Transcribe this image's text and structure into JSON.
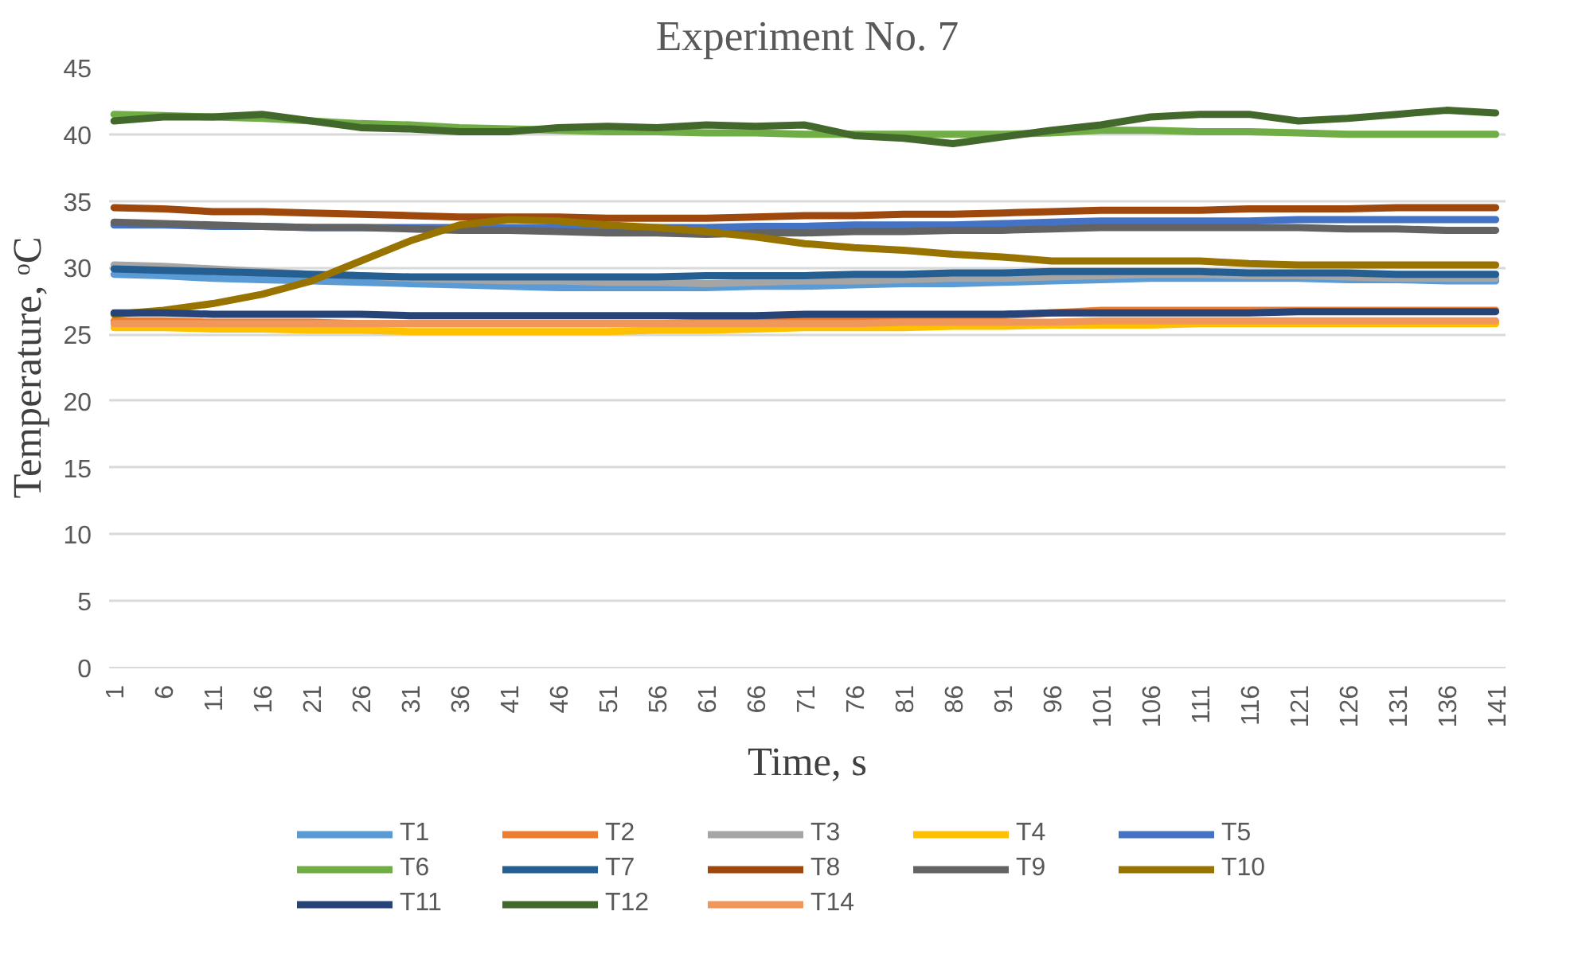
{
  "chart_data": {
    "type": "line",
    "title": "Experiment No. 7",
    "xlabel": "Time, s",
    "ylabel": "Temperature, ᵒC",
    "x": [
      1,
      6,
      11,
      16,
      21,
      26,
      31,
      36,
      41,
      46,
      51,
      56,
      61,
      66,
      71,
      76,
      81,
      86,
      91,
      96,
      101,
      106,
      111,
      116,
      121,
      126,
      131,
      136,
      141
    ],
    "xlim": [
      0.5,
      142
    ],
    "xticks": [
      1,
      6,
      11,
      16,
      21,
      26,
      31,
      36,
      41,
      46,
      51,
      56,
      61,
      66,
      71,
      76,
      81,
      86,
      91,
      96,
      101,
      106,
      111,
      116,
      121,
      126,
      131,
      136,
      141
    ],
    "ylim": [
      0,
      45
    ],
    "yticks": [
      0,
      5,
      10,
      15,
      20,
      25,
      30,
      35,
      40,
      45
    ],
    "grid": "y",
    "legend": "bottom",
    "marker": "none",
    "line_style": "solid",
    "series": [
      {
        "name": "T1",
        "color": "#5b9bd5",
        "values": [
          29.5,
          29.4,
          29.2,
          29.1,
          29,
          28.9,
          28.8,
          28.7,
          28.6,
          28.5,
          28.5,
          28.5,
          28.5,
          28.6,
          28.6,
          28.7,
          28.8,
          28.8,
          28.9,
          29,
          29.1,
          29.2,
          29.2,
          29.2,
          29.2,
          29.1,
          29.1,
          29,
          29
        ]
      },
      {
        "name": "T2",
        "color": "#ed7d31",
        "values": [
          26,
          26,
          25.9,
          25.9,
          25.9,
          25.8,
          25.8,
          25.8,
          25.8,
          25.8,
          25.8,
          25.8,
          25.9,
          25.9,
          26,
          26,
          26.1,
          26.2,
          26.4,
          26.6,
          26.8,
          26.8,
          26.8,
          26.8,
          26.8,
          26.8,
          26.8,
          26.8,
          26.8
        ]
      },
      {
        "name": "T3",
        "color": "#a5a5a5",
        "values": [
          30.2,
          30.1,
          29.9,
          29.7,
          29.5,
          29.4,
          29.2,
          29.1,
          29,
          29,
          28.9,
          28.9,
          28.8,
          28.9,
          29,
          29,
          29.1,
          29.2,
          29.2,
          29.3,
          29.4,
          29.5,
          29.5,
          29.4,
          29.4,
          29.3,
          29.2,
          29.2,
          29.2
        ]
      },
      {
        "name": "T4",
        "color": "#ffc000",
        "values": [
          25.5,
          25.5,
          25.4,
          25.4,
          25.3,
          25.3,
          25.2,
          25.2,
          25.2,
          25.2,
          25.2,
          25.3,
          25.3,
          25.4,
          25.5,
          25.5,
          25.5,
          25.6,
          25.6,
          25.7,
          25.7,
          25.7,
          25.8,
          25.8,
          25.8,
          25.8,
          25.8,
          25.8,
          25.8
        ]
      },
      {
        "name": "T5",
        "color": "#4472c4",
        "values": [
          33.2,
          33.2,
          33.1,
          33.1,
          33,
          33,
          33,
          33,
          33,
          33,
          33,
          33,
          33,
          33.1,
          33.1,
          33.2,
          33.2,
          33.2,
          33.3,
          33.4,
          33.5,
          33.5,
          33.5,
          33.5,
          33.6,
          33.6,
          33.6,
          33.6,
          33.6
        ]
      },
      {
        "name": "T6",
        "color": "#70ad47",
        "values": [
          41.5,
          41.4,
          41.3,
          41.2,
          41,
          40.8,
          40.7,
          40.5,
          40.4,
          40.3,
          40.2,
          40.2,
          40.1,
          40.1,
          40,
          40,
          40,
          40,
          40,
          40.1,
          40.3,
          40.3,
          40.2,
          40.2,
          40.1,
          40,
          40,
          40,
          40
        ]
      },
      {
        "name": "T7",
        "color": "#255e91",
        "values": [
          29.9,
          29.8,
          29.7,
          29.6,
          29.5,
          29.4,
          29.3,
          29.3,
          29.3,
          29.3,
          29.3,
          29.3,
          29.4,
          29.4,
          29.4,
          29.5,
          29.5,
          29.6,
          29.6,
          29.7,
          29.7,
          29.7,
          29.7,
          29.6,
          29.6,
          29.6,
          29.5,
          29.5,
          29.5
        ]
      },
      {
        "name": "T8",
        "color": "#9e480e",
        "values": [
          34.5,
          34.4,
          34.2,
          34.2,
          34.1,
          34,
          33.9,
          33.8,
          33.8,
          33.8,
          33.7,
          33.7,
          33.7,
          33.8,
          33.9,
          33.9,
          34,
          34,
          34.1,
          34.2,
          34.3,
          34.3,
          34.3,
          34.4,
          34.4,
          34.4,
          34.5,
          34.5,
          34.5
        ]
      },
      {
        "name": "T9",
        "color": "#636363",
        "values": [
          33.4,
          33.3,
          33.2,
          33.1,
          33,
          33,
          32.9,
          32.8,
          32.8,
          32.7,
          32.6,
          32.6,
          32.5,
          32.6,
          32.6,
          32.7,
          32.7,
          32.8,
          32.8,
          32.9,
          33,
          33,
          33,
          33,
          33,
          32.9,
          32.9,
          32.8,
          32.8
        ]
      },
      {
        "name": "T10",
        "color": "#997300",
        "values": [
          26.5,
          26.8,
          27.3,
          28,
          29,
          30.5,
          32,
          33.2,
          33.6,
          33.5,
          33.2,
          33,
          32.7,
          32.3,
          31.8,
          31.5,
          31.3,
          31,
          30.8,
          30.5,
          30.5,
          30.5,
          30.5,
          30.3,
          30.2,
          30.2,
          30.2,
          30.2,
          30.2
        ]
      },
      {
        "name": "T11",
        "color": "#264478",
        "values": [
          26.6,
          26.6,
          26.5,
          26.5,
          26.5,
          26.5,
          26.4,
          26.4,
          26.4,
          26.4,
          26.4,
          26.4,
          26.4,
          26.4,
          26.5,
          26.5,
          26.5,
          26.5,
          26.5,
          26.6,
          26.6,
          26.6,
          26.6,
          26.6,
          26.7,
          26.7,
          26.7,
          26.7,
          26.7
        ]
      },
      {
        "name": "T12",
        "color": "#43682b",
        "values": [
          41,
          41.3,
          41.3,
          41.5,
          41,
          40.5,
          40.4,
          40.2,
          40.2,
          40.5,
          40.6,
          40.5,
          40.7,
          40.6,
          40.7,
          39.9,
          39.7,
          39.3,
          39.8,
          40.3,
          40.7,
          41.3,
          41.5,
          41.5,
          41,
          41.2,
          41.5,
          41.8,
          41.6
        ]
      },
      {
        "name": "T14",
        "color": "#f1975a",
        "values": [
          25.8,
          25.8,
          25.8,
          25.8,
          25.8,
          25.8,
          25.8,
          25.8,
          25.8,
          25.8,
          25.8,
          25.8,
          25.8,
          25.8,
          25.8,
          25.8,
          25.9,
          25.9,
          25.9,
          25.9,
          26,
          26,
          26,
          26,
          26,
          26,
          26,
          26,
          26
        ]
      }
    ]
  }
}
